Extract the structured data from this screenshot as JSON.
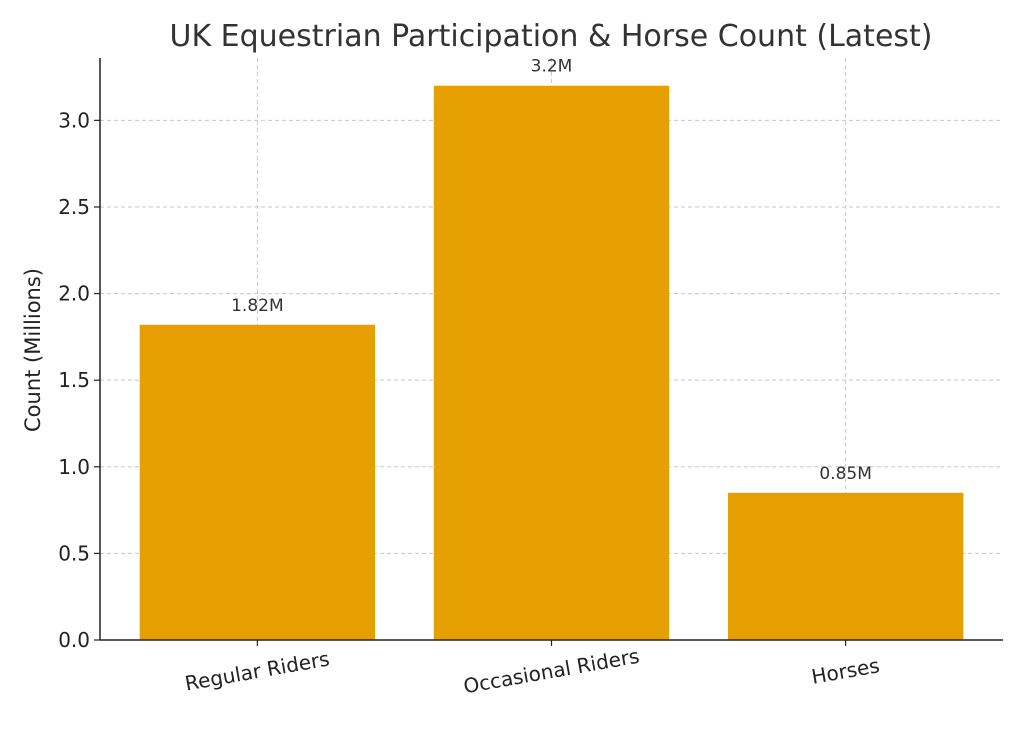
{
  "chart_data": {
    "type": "bar",
    "title": "UK Equestrian Participation & Horse Count (Latest)",
    "xlabel": "",
    "ylabel": "Count (Millions)",
    "categories": [
      "Regular Riders",
      "Occasional Riders",
      "Horses"
    ],
    "values": [
      1.82,
      3.2,
      0.85
    ],
    "data_labels": [
      "1.82M",
      "3.2M",
      "0.85M"
    ],
    "ylim": [
      0,
      3.36
    ],
    "yticks": [
      0.0,
      0.5,
      1.0,
      1.5,
      2.0,
      2.5,
      3.0
    ],
    "ytick_labels": [
      "0.0",
      "0.5",
      "1.0",
      "1.5",
      "2.0",
      "2.5",
      "3.0"
    ],
    "grid": true,
    "bar_color": "#E69F00"
  }
}
